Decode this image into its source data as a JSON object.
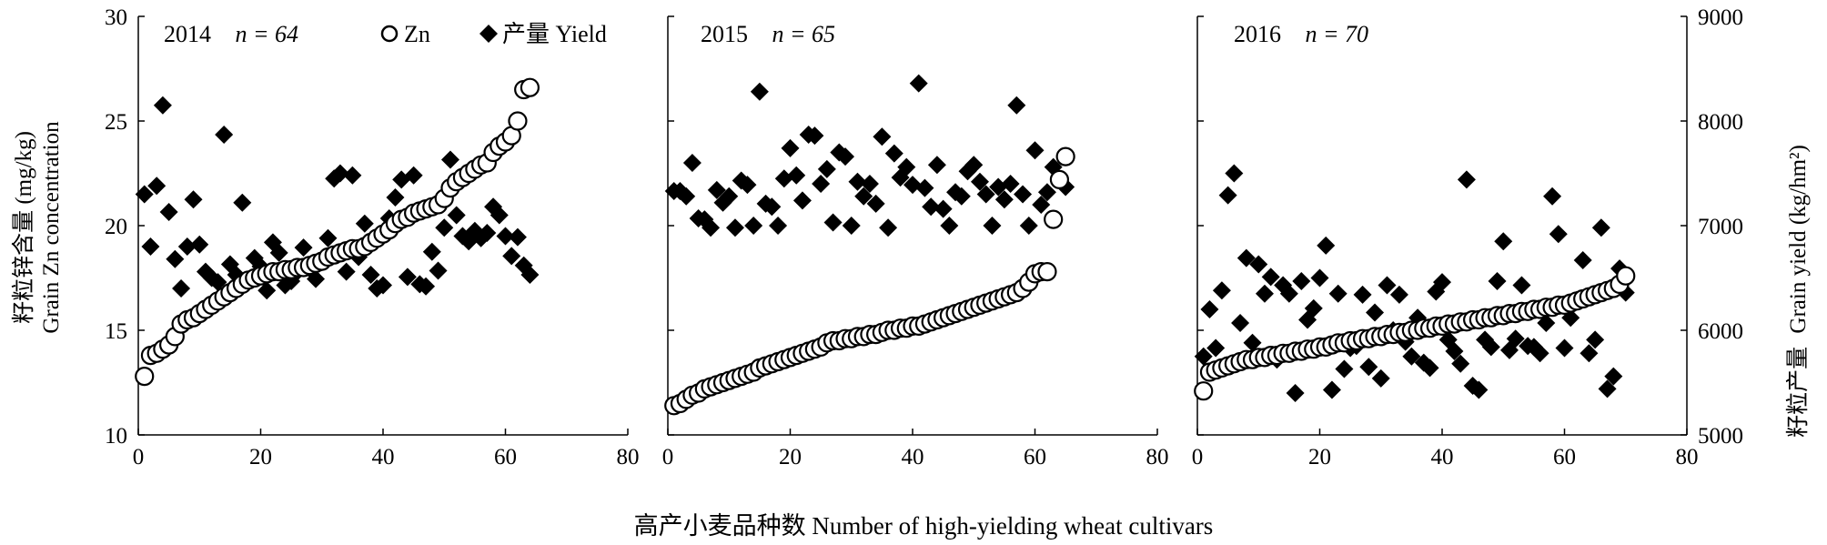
{
  "figure": {
    "left_axis_label_cn": "籽粒锌含量 (mg/kg)",
    "left_axis_label_en": "Grain Zn concentration",
    "right_axis_label_cn": "籽粒产量",
    "right_axis_label_en": "Grain yield (kg/hm²)",
    "x_axis_label": "高产小麦品种数 Number of high-yielding wheat cultivars",
    "legend": {
      "zn_label": "Zn",
      "yield_label": "产量 Yield"
    }
  },
  "chart_data": [
    {
      "type": "scatter",
      "year": "2014",
      "n_label": "n = 64",
      "xlim": [
        0,
        80
      ],
      "xticks": [
        0,
        20,
        40,
        60,
        80
      ],
      "y_left_lim": [
        10,
        30
      ],
      "y_left_ticks": [
        10,
        15,
        20,
        25,
        30
      ],
      "series": [
        {
          "name": "Zn",
          "x": [
            1,
            2,
            3,
            4,
            5,
            6,
            7,
            8,
            9,
            10,
            11,
            12,
            13,
            14,
            15,
            16,
            17,
            18,
            19,
            20,
            21,
            22,
            23,
            24,
            25,
            26,
            27,
            28,
            29,
            30,
            31,
            32,
            33,
            34,
            35,
            36,
            37,
            38,
            39,
            40,
            41,
            42,
            43,
            44,
            45,
            46,
            47,
            48,
            49,
            50,
            51,
            52,
            53,
            54,
            55,
            56,
            57,
            58,
            59,
            60,
            61,
            62,
            63,
            64
          ],
          "y": [
            12.8,
            13.8,
            13.9,
            14.1,
            14.3,
            14.7,
            15.3,
            15.5,
            15.6,
            15.8,
            16.0,
            16.2,
            16.4,
            16.6,
            16.8,
            17.0,
            17.2,
            17.4,
            17.5,
            17.6,
            17.7,
            17.8,
            17.8,
            17.9,
            17.9,
            18.0,
            18.0,
            18.1,
            18.2,
            18.3,
            18.5,
            18.6,
            18.7,
            18.8,
            18.9,
            18.9,
            19.0,
            19.2,
            19.4,
            19.6,
            19.8,
            20.1,
            20.3,
            20.4,
            20.6,
            20.7,
            20.8,
            20.9,
            21.0,
            21.3,
            21.8,
            22.1,
            22.3,
            22.5,
            22.7,
            22.9,
            23.0,
            23.5,
            23.8,
            24.0,
            24.3,
            25.0,
            26.5,
            26.6
          ]
        },
        {
          "name": "产量 Yield",
          "x": [
            1,
            2,
            3,
            4,
            5,
            6,
            7,
            8,
            9,
            10,
            11,
            12,
            13,
            14,
            15,
            16,
            17,
            18,
            19,
            20,
            21,
            22,
            23,
            24,
            25,
            26,
            27,
            28,
            29,
            30,
            31,
            32,
            33,
            34,
            35,
            36,
            37,
            38,
            39,
            40,
            41,
            42,
            43,
            44,
            45,
            46,
            47,
            48,
            49,
            50,
            51,
            52,
            53,
            54,
            55,
            56,
            57,
            58,
            59,
            60,
            61,
            62,
            63,
            64
          ],
          "y": [
            7300,
            6800,
            7380,
            8150,
            7130,
            6680,
            6400,
            6800,
            7250,
            6820,
            6560,
            6500,
            6460,
            7870,
            6630,
            6530,
            7220,
            6480,
            6690,
            6610,
            6380,
            6840,
            6740,
            6430,
            6470,
            6560,
            6790,
            6590,
            6490,
            6650,
            6880,
            7450,
            7500,
            6560,
            7480,
            6700,
            7020,
            6530,
            6400,
            6430,
            7070,
            7270,
            7440,
            6510,
            7480,
            6440,
            6420,
            6750,
            6570,
            6980,
            7630,
            7100,
            6900,
            6850,
            6950,
            6880,
            6930,
            7180,
            7100,
            6900,
            6710,
            6890,
            6620,
            6530
          ]
        }
      ]
    },
    {
      "type": "scatter",
      "year": "2015",
      "n_label": "n = 65",
      "xlim": [
        0,
        80
      ],
      "xticks": [
        0,
        20,
        40,
        60,
        80
      ],
      "series": [
        {
          "name": "Zn",
          "x": [
            1,
            2,
            3,
            4,
            5,
            6,
            7,
            8,
            9,
            10,
            11,
            12,
            13,
            14,
            15,
            16,
            17,
            18,
            19,
            20,
            21,
            22,
            23,
            24,
            25,
            26,
            27,
            28,
            29,
            30,
            31,
            32,
            33,
            34,
            35,
            36,
            37,
            38,
            39,
            40,
            41,
            42,
            43,
            44,
            45,
            46,
            47,
            48,
            49,
            50,
            51,
            52,
            53,
            54,
            55,
            56,
            57,
            58,
            59,
            60,
            61,
            62,
            63,
            64,
            65
          ],
          "y": [
            11.4,
            11.5,
            11.7,
            11.9,
            12.0,
            12.2,
            12.3,
            12.4,
            12.5,
            12.6,
            12.7,
            12.8,
            12.9,
            13.0,
            13.2,
            13.3,
            13.4,
            13.5,
            13.6,
            13.7,
            13.8,
            13.9,
            14.0,
            14.1,
            14.2,
            14.4,
            14.5,
            14.5,
            14.6,
            14.6,
            14.7,
            14.7,
            14.8,
            14.8,
            14.9,
            15.0,
            15.0,
            15.1,
            15.1,
            15.2,
            15.2,
            15.3,
            15.4,
            15.5,
            15.6,
            15.7,
            15.8,
            15.9,
            16.0,
            16.1,
            16.2,
            16.3,
            16.4,
            16.5,
            16.6,
            16.7,
            16.8,
            17.0,
            17.3,
            17.7,
            17.8,
            17.8,
            20.3,
            22.2,
            23.3
          ]
        },
        {
          "name": "产量 Yield",
          "x": [
            1,
            2,
            3,
            4,
            5,
            6,
            7,
            8,
            9,
            10,
            11,
            12,
            13,
            14,
            15,
            16,
            17,
            18,
            19,
            20,
            21,
            22,
            23,
            24,
            25,
            26,
            27,
            28,
            29,
            30,
            31,
            32,
            33,
            34,
            35,
            36,
            37,
            38,
            39,
            40,
            41,
            42,
            43,
            44,
            45,
            46,
            47,
            48,
            49,
            50,
            51,
            52,
            53,
            54,
            55,
            56,
            57,
            58,
            59,
            60,
            61,
            62,
            63,
            64,
            65
          ],
          "y": [
            7330,
            7330,
            7280,
            7600,
            7070,
            7060,
            6980,
            7340,
            7220,
            7280,
            6980,
            7430,
            7390,
            7000,
            8280,
            7210,
            7180,
            7000,
            7450,
            7740,
            7480,
            7240,
            7870,
            7860,
            7400,
            7540,
            7030,
            7700,
            7660,
            7000,
            7420,
            7280,
            7400,
            7210,
            7850,
            6980,
            7690,
            7460,
            7560,
            7390,
            8360,
            7360,
            7180,
            7580,
            7160,
            7000,
            7320,
            7280,
            7520,
            7580,
            7420,
            7300,
            7000,
            7370,
            7250,
            7400,
            8150,
            7300,
            7000,
            7720,
            7200,
            7320,
            7560,
            7440,
            7370
          ]
        }
      ]
    },
    {
      "type": "scatter",
      "year": "2016",
      "n_label": "n = 70",
      "xlim": [
        0,
        80
      ],
      "xticks": [
        0,
        20,
        40,
        60,
        80
      ],
      "y_right_lim": [
        5000,
        9000
      ],
      "y_right_ticks": [
        5000,
        6000,
        7000,
        8000,
        9000
      ],
      "series": [
        {
          "name": "Zn",
          "x": [
            1,
            2,
            3,
            4,
            5,
            6,
            7,
            8,
            9,
            10,
            11,
            12,
            13,
            14,
            15,
            16,
            17,
            18,
            19,
            20,
            21,
            22,
            23,
            24,
            25,
            26,
            27,
            28,
            29,
            30,
            31,
            32,
            33,
            34,
            35,
            36,
            37,
            38,
            39,
            40,
            41,
            42,
            43,
            44,
            45,
            46,
            47,
            48,
            49,
            50,
            51,
            52,
            53,
            54,
            55,
            56,
            57,
            58,
            59,
            60,
            61,
            62,
            63,
            64,
            65,
            66,
            67,
            68,
            69,
            70
          ],
          "y": [
            12.1,
            13.0,
            13.1,
            13.2,
            13.3,
            13.4,
            13.5,
            13.6,
            13.6,
            13.7,
            13.7,
            13.8,
            13.8,
            13.9,
            13.9,
            14.0,
            14.0,
            14.1,
            14.1,
            14.2,
            14.2,
            14.3,
            14.4,
            14.4,
            14.5,
            14.5,
            14.6,
            14.6,
            14.7,
            14.7,
            14.8,
            14.8,
            14.9,
            14.9,
            15.0,
            15.0,
            15.1,
            15.1,
            15.2,
            15.2,
            15.3,
            15.3,
            15.4,
            15.4,
            15.5,
            15.5,
            15.6,
            15.6,
            15.7,
            15.7,
            15.8,
            15.8,
            15.9,
            15.9,
            16.0,
            16.0,
            16.1,
            16.1,
            16.2,
            16.2,
            16.3,
            16.4,
            16.5,
            16.6,
            16.7,
            16.8,
            16.9,
            17.0,
            17.2,
            17.6
          ]
        },
        {
          "name": "产量 Yield",
          "x": [
            1,
            2,
            3,
            4,
            5,
            6,
            7,
            8,
            9,
            10,
            11,
            12,
            13,
            14,
            15,
            16,
            17,
            18,
            19,
            20,
            21,
            22,
            23,
            24,
            25,
            26,
            27,
            28,
            29,
            30,
            31,
            32,
            33,
            34,
            35,
            36,
            37,
            38,
            39,
            40,
            41,
            42,
            43,
            44,
            45,
            46,
            47,
            48,
            49,
            50,
            51,
            52,
            53,
            54,
            55,
            56,
            57,
            58,
            59,
            60,
            61,
            62,
            63,
            64,
            65,
            66,
            67,
            68,
            69,
            70
          ],
          "y": [
            5750,
            6200,
            5830,
            6380,
            7290,
            7500,
            6070,
            6690,
            5880,
            6630,
            6350,
            6510,
            5720,
            6430,
            6350,
            5400,
            6470,
            6100,
            6210,
            6500,
            6810,
            5430,
            6350,
            5630,
            5830,
            5850,
            6340,
            5650,
            6170,
            5540,
            6430,
            6000,
            6340,
            5890,
            5750,
            6120,
            5690,
            5640,
            6370,
            6460,
            5910,
            5800,
            5680,
            7440,
            5470,
            5430,
            5910,
            5840,
            6470,
            6850,
            5810,
            5920,
            6430,
            5850,
            5840,
            5780,
            6070,
            7280,
            6920,
            5830,
            6120,
            6290,
            6670,
            5780,
            5910,
            6980,
            5440,
            5560,
            6590,
            6360
          ]
        }
      ]
    }
  ]
}
